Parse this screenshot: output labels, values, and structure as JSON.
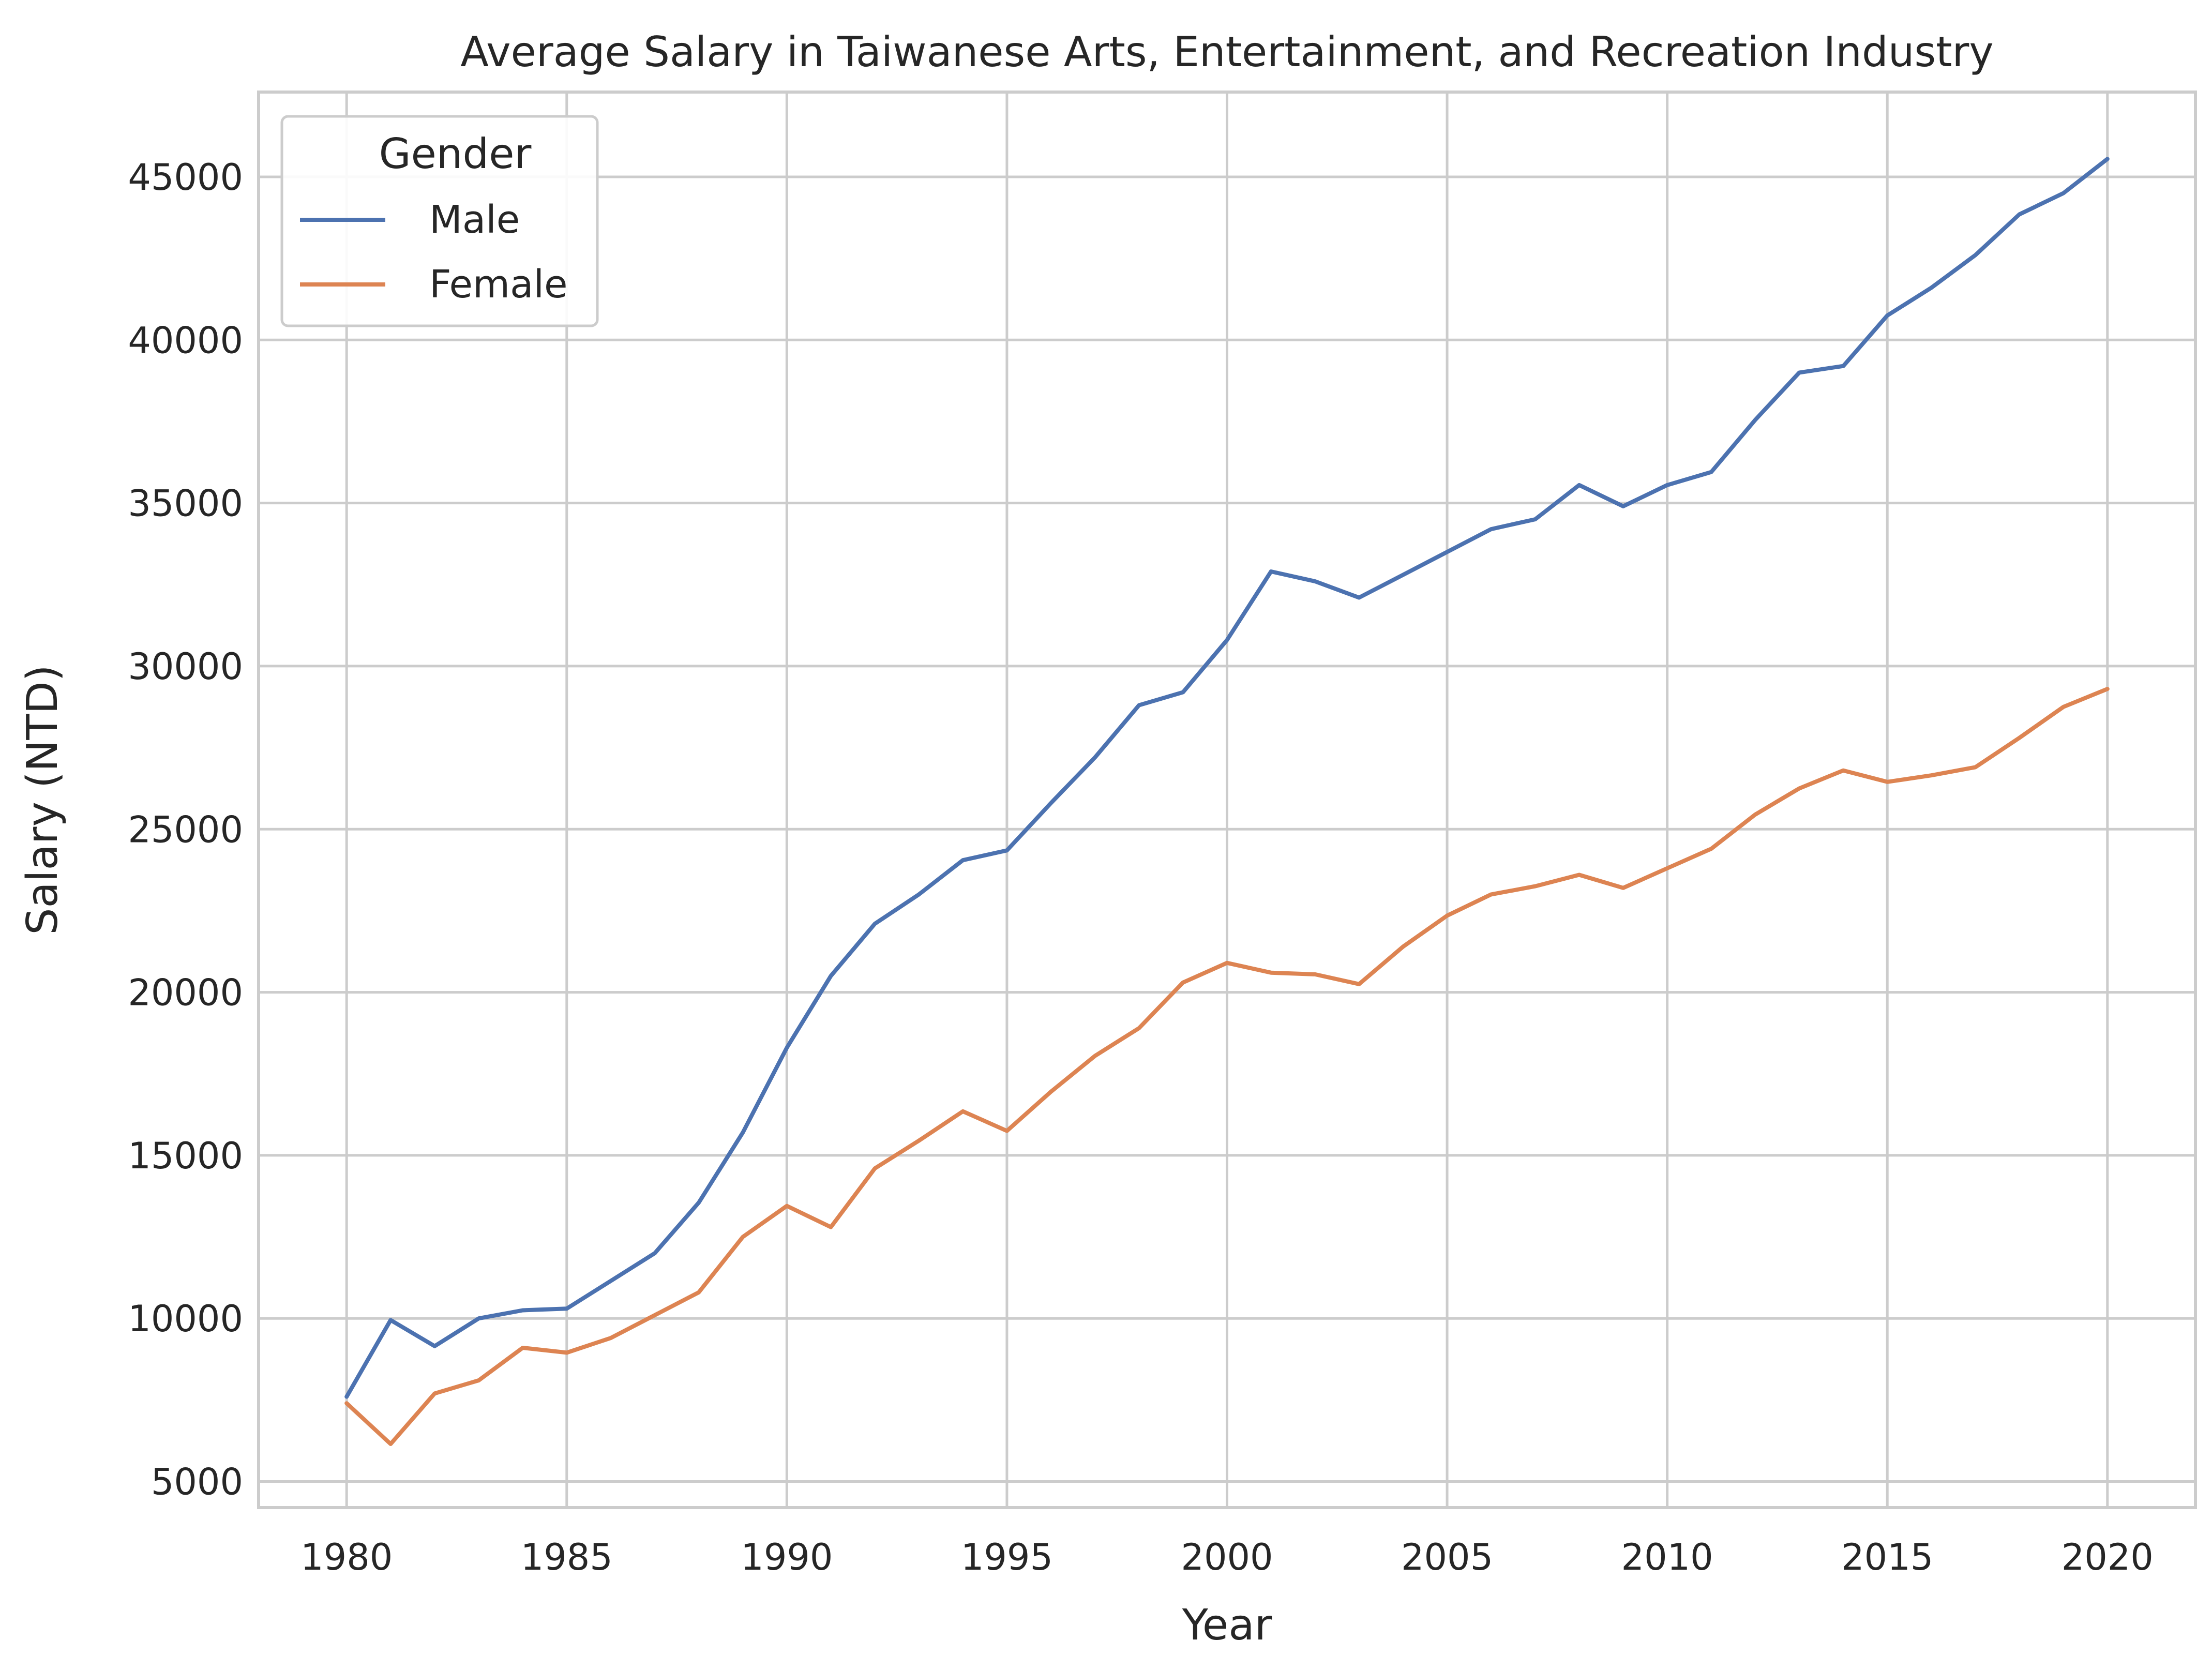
{
  "chart_data": {
    "type": "line",
    "title": "Average Salary in Taiwanese Arts, Entertainment, and Recreation Industry",
    "xlabel": "Year",
    "ylabel": "Salary (NTD)",
    "xlim": [
      1978,
      2022
    ],
    "ylim": [
      4200,
      47600
    ],
    "xticks": [
      1980,
      1985,
      1990,
      1995,
      2000,
      2005,
      2010,
      2015,
      2020
    ],
    "yticks": [
      5000,
      10000,
      15000,
      20000,
      25000,
      30000,
      35000,
      40000,
      45000
    ],
    "grid": true,
    "legend": {
      "title": "Gender",
      "placement": "top-left"
    },
    "x": [
      1980,
      1981,
      1982,
      1983,
      1984,
      1985,
      1986,
      1987,
      1988,
      1989,
      1990,
      1991,
      1992,
      1993,
      1994,
      1995,
      1996,
      1997,
      1998,
      1999,
      2000,
      2001,
      2002,
      2003,
      2004,
      2005,
      2006,
      2007,
      2008,
      2009,
      2010,
      2011,
      2012,
      2013,
      2014,
      2015,
      2016,
      2017,
      2018,
      2019,
      2020
    ],
    "series": [
      {
        "name": "Male",
        "color": "#4c72b0",
        "values": [
          7600,
          9950,
          9150,
          10000,
          10250,
          10300,
          11150,
          12000,
          13550,
          15700,
          18300,
          20500,
          22100,
          23000,
          24050,
          24350,
          25800,
          27200,
          28800,
          29200,
          30800,
          32900,
          32600,
          32100,
          32800,
          33500,
          34200,
          34500,
          35550,
          34900,
          35550,
          35950,
          37550,
          39000,
          39200,
          40750,
          41600,
          42600,
          43850,
          44500,
          45550
        ]
      },
      {
        "name": "Female",
        "color": "#dd8452",
        "values": [
          7400,
          6150,
          7700,
          8100,
          9100,
          8950,
          9400,
          10100,
          10800,
          12500,
          13450,
          12800,
          14600,
          15450,
          16350,
          15750,
          16950,
          18050,
          18900,
          20300,
          20900,
          20600,
          20550,
          20250,
          21400,
          22350,
          23000,
          23250,
          23600,
          23200,
          23800,
          24400,
          25450,
          26250,
          26800,
          26450,
          26650,
          26900,
          27800,
          28750,
          29300
        ]
      }
    ]
  }
}
